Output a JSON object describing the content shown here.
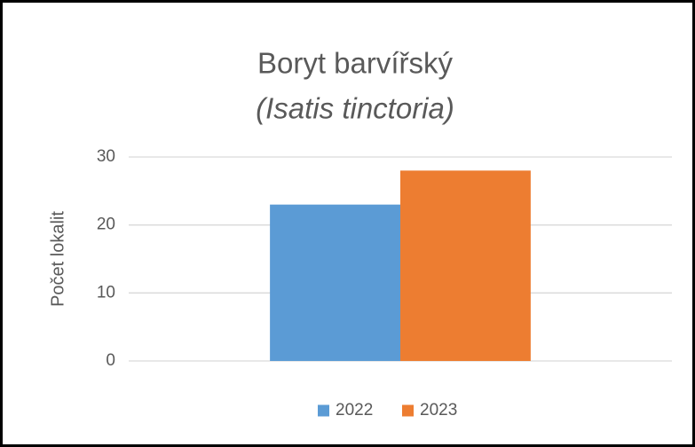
{
  "chart_data": {
    "type": "bar",
    "title": "Boryt barvířský",
    "subtitle": "(Isatis tinctoria)",
    "y_label": "Počet lokalit",
    "categories": [
      null
    ],
    "series": [
      {
        "name": "2022",
        "color": "#5b9bd5",
        "values": [
          23
        ]
      },
      {
        "name": "2023",
        "color": "#ed7d31",
        "values": [
          28
        ]
      }
    ],
    "ylim": [
      0,
      30
    ],
    "yticks": [
      0,
      10,
      20,
      30
    ],
    "grid": true,
    "legend": "bottom"
  }
}
